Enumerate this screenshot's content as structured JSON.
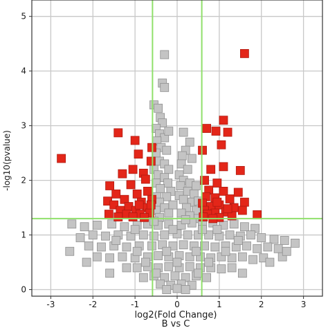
{
  "chart_data": {
    "type": "scatter",
    "title": "",
    "xlabel": "log2(Fold Change)",
    "xlabel_sub": "B vs C",
    "ylabel": "-log10(pvalue)",
    "xlim": [
      -3.45,
      3.45
    ],
    "ylim": [
      -0.12,
      5.3
    ],
    "xticks": [
      -3,
      -2,
      -1,
      0,
      1,
      2,
      3
    ],
    "yticks": [
      0,
      1,
      2,
      3,
      4,
      5
    ],
    "grid": true,
    "thresholds": {
      "x": [
        -0.585,
        0.585
      ],
      "y": 1.3
    },
    "colors": {
      "significant": "#e32619",
      "not_significant": "#c4c4c4",
      "marker_edge": "#8f8f8f",
      "threshold_line": "#8fe06a",
      "grid": "#c8c8c8",
      "frame": "#333333"
    },
    "series": [
      {
        "points": [
          [
            -2.75,
            2.4
          ],
          [
            -1.4,
            2.87
          ],
          [
            -1.0,
            2.73
          ],
          [
            -0.92,
            2.48
          ],
          [
            -0.6,
            2.6
          ],
          [
            -1.05,
            2.2
          ],
          [
            -0.62,
            2.35
          ],
          [
            -1.3,
            2.12
          ],
          [
            -0.8,
            2.13
          ],
          [
            -1.6,
            1.9
          ],
          [
            -1.1,
            1.92
          ],
          [
            -0.75,
            2.02
          ],
          [
            -1.45,
            1.75
          ],
          [
            -0.95,
            1.75
          ],
          [
            -0.7,
            1.8
          ],
          [
            -1.65,
            1.62
          ],
          [
            -1.25,
            1.65
          ],
          [
            -0.85,
            1.6
          ],
          [
            -0.6,
            1.65
          ],
          [
            -1.5,
            1.55
          ],
          [
            -1.15,
            1.52
          ],
          [
            -1.35,
            1.45
          ],
          [
            -0.98,
            1.45
          ],
          [
            -0.72,
            1.5
          ],
          [
            -1.62,
            1.38
          ],
          [
            -1.2,
            1.38
          ],
          [
            -0.88,
            1.38
          ],
          [
            -0.65,
            1.4
          ],
          [
            -1.05,
            1.33
          ],
          [
            -0.78,
            1.32
          ],
          [
            -1.4,
            1.33
          ],
          [
            -0.62,
            1.55
          ],
          [
            -0.9,
            1.55
          ],
          [
            1.6,
            4.32
          ],
          [
            1.1,
            3.1
          ],
          [
            0.7,
            2.95
          ],
          [
            0.92,
            2.9
          ],
          [
            1.2,
            2.88
          ],
          [
            1.05,
            2.65
          ],
          [
            0.6,
            2.55
          ],
          [
            1.1,
            2.25
          ],
          [
            1.5,
            2.18
          ],
          [
            0.8,
            2.2
          ],
          [
            0.65,
            2.0
          ],
          [
            0.95,
            1.95
          ],
          [
            0.75,
            1.82
          ],
          [
            1.1,
            1.8
          ],
          [
            1.45,
            1.78
          ],
          [
            0.68,
            1.7
          ],
          [
            0.9,
            1.68
          ],
          [
            1.25,
            1.66
          ],
          [
            1.6,
            1.6
          ],
          [
            0.6,
            1.58
          ],
          [
            1.0,
            1.55
          ],
          [
            0.8,
            1.52
          ],
          [
            1.35,
            1.5
          ],
          [
            0.65,
            1.45
          ],
          [
            1.15,
            1.42
          ],
          [
            1.55,
            1.45
          ],
          [
            0.9,
            1.4
          ],
          [
            0.72,
            1.38
          ],
          [
            1.3,
            1.35
          ],
          [
            1.0,
            1.32
          ],
          [
            1.9,
            1.37
          ],
          [
            0.62,
            1.33
          ],
          [
            0.85,
            1.3
          ],
          [
            1.2,
            1.48
          ],
          [
            0.95,
            1.6
          ]
        ]
      },
      {
        "points": [
          [
            -0.3,
            4.3
          ],
          [
            -0.35,
            3.78
          ],
          [
            -0.3,
            3.7
          ],
          [
            -0.55,
            3.38
          ],
          [
            -0.45,
            3.32
          ],
          [
            -0.4,
            3.15
          ],
          [
            -0.35,
            3.05
          ],
          [
            -0.5,
            2.95
          ],
          [
            -0.42,
            2.85
          ],
          [
            -0.3,
            2.78
          ],
          [
            -0.48,
            2.72
          ],
          [
            -0.2,
            2.9
          ],
          [
            -0.38,
            2.6
          ],
          [
            -0.5,
            2.5
          ],
          [
            -0.25,
            2.55
          ],
          [
            0.15,
            2.88
          ],
          [
            0.3,
            2.7
          ],
          [
            0.2,
            2.55
          ],
          [
            0.12,
            2.45
          ],
          [
            0.35,
            2.4
          ],
          [
            0.1,
            2.3
          ],
          [
            0.25,
            2.2
          ],
          [
            0.05,
            2.1
          ],
          [
            -0.42,
            2.35
          ],
          [
            -0.3,
            2.3
          ],
          [
            -0.55,
            2.2
          ],
          [
            -0.2,
            2.2
          ],
          [
            -0.45,
            2.1
          ],
          [
            -0.3,
            2.05
          ],
          [
            -0.5,
            1.95
          ],
          [
            -0.22,
            1.95
          ],
          [
            0.15,
            2.0
          ],
          [
            0.3,
            1.95
          ],
          [
            0.45,
            1.9
          ],
          [
            0.08,
            1.9
          ],
          [
            -0.4,
            1.85
          ],
          [
            -0.15,
            1.8
          ],
          [
            0.25,
            1.8
          ],
          [
            0.4,
            1.75
          ],
          [
            -0.48,
            1.7
          ],
          [
            -0.25,
            1.7
          ],
          [
            0.05,
            1.72
          ],
          [
            0.15,
            1.65
          ],
          [
            0.35,
            1.6
          ],
          [
            0.5,
            1.62
          ],
          [
            -0.42,
            1.6
          ],
          [
            -0.1,
            1.55
          ],
          [
            0.22,
            1.5
          ],
          [
            -0.3,
            1.5
          ],
          [
            0.45,
            1.45
          ],
          [
            -0.5,
            1.45
          ],
          [
            0.1,
            1.4
          ],
          [
            -0.2,
            1.4
          ],
          [
            0.3,
            1.35
          ],
          [
            -0.42,
            1.32
          ],
          [
            0.5,
            1.3
          ],
          [
            -2.5,
            1.2
          ],
          [
            -2.2,
            1.15
          ],
          [
            -1.9,
            1.18
          ],
          [
            -1.55,
            1.2
          ],
          [
            -1.25,
            1.15
          ],
          [
            -0.95,
            1.18
          ],
          [
            -0.7,
            1.2
          ],
          [
            -0.45,
            1.18
          ],
          [
            -0.2,
            1.2
          ],
          [
            0.1,
            1.18
          ],
          [
            0.35,
            1.22
          ],
          [
            0.6,
            1.2
          ],
          [
            0.85,
            1.22
          ],
          [
            1.1,
            1.18
          ],
          [
            1.35,
            1.2
          ],
          [
            1.6,
            1.15
          ],
          [
            1.85,
            1.12
          ],
          [
            -2.3,
            0.95
          ],
          [
            -2.0,
            1.0
          ],
          [
            -1.7,
            0.98
          ],
          [
            -1.4,
            1.0
          ],
          [
            -1.1,
            0.98
          ],
          [
            -0.8,
            1.0
          ],
          [
            -0.55,
            0.98
          ],
          [
            -0.3,
            1.0
          ],
          [
            0.0,
            1.02
          ],
          [
            0.25,
            1.0
          ],
          [
            0.5,
            1.0
          ],
          [
            0.75,
            1.0
          ],
          [
            1.0,
            0.98
          ],
          [
            1.25,
            1.0
          ],
          [
            1.5,
            0.98
          ],
          [
            1.75,
            1.0
          ],
          [
            2.0,
            0.95
          ],
          [
            2.3,
            0.92
          ],
          [
            2.55,
            0.9
          ],
          [
            2.8,
            0.85
          ],
          [
            -2.1,
            0.8
          ],
          [
            -1.8,
            0.78
          ],
          [
            -1.5,
            0.8
          ],
          [
            -1.2,
            0.78
          ],
          [
            -0.9,
            0.8
          ],
          [
            -0.6,
            0.8
          ],
          [
            -0.35,
            0.82
          ],
          [
            -0.1,
            0.8
          ],
          [
            0.15,
            0.82
          ],
          [
            0.4,
            0.8
          ],
          [
            0.65,
            0.8
          ],
          [
            0.9,
            0.78
          ],
          [
            1.15,
            0.8
          ],
          [
            1.4,
            0.78
          ],
          [
            1.65,
            0.8
          ],
          [
            1.9,
            0.75
          ],
          [
            2.15,
            0.78
          ],
          [
            2.4,
            0.75
          ],
          [
            -1.9,
            0.6
          ],
          [
            -1.6,
            0.58
          ],
          [
            -1.3,
            0.6
          ],
          [
            -1.0,
            0.58
          ],
          [
            -0.7,
            0.6
          ],
          [
            -0.45,
            0.62
          ],
          [
            -0.2,
            0.6
          ],
          [
            0.05,
            0.62
          ],
          [
            0.3,
            0.6
          ],
          [
            0.55,
            0.6
          ],
          [
            0.8,
            0.58
          ],
          [
            1.05,
            0.6
          ],
          [
            1.3,
            0.58
          ],
          [
            1.55,
            0.6
          ],
          [
            1.8,
            0.55
          ],
          [
            2.05,
            0.58
          ],
          [
            -1.2,
            0.4
          ],
          [
            -0.95,
            0.4
          ],
          [
            -0.7,
            0.42
          ],
          [
            -0.45,
            0.4
          ],
          [
            -0.2,
            0.42
          ],
          [
            0.05,
            0.4
          ],
          [
            0.3,
            0.42
          ],
          [
            0.55,
            0.4
          ],
          [
            0.8,
            0.4
          ],
          [
            1.05,
            0.38
          ],
          [
            1.3,
            0.4
          ],
          [
            -0.8,
            0.22
          ],
          [
            -0.55,
            0.25
          ],
          [
            -0.3,
            0.22
          ],
          [
            -0.05,
            0.25
          ],
          [
            0.2,
            0.22
          ],
          [
            0.45,
            0.25
          ],
          [
            0.7,
            0.22
          ],
          [
            -0.4,
            0.1
          ],
          [
            -0.15,
            0.08
          ],
          [
            0.1,
            0.1
          ],
          [
            0.35,
            0.08
          ],
          [
            0.0,
            0.02
          ],
          [
            -0.25,
            0.0
          ],
          [
            0.2,
            0.0
          ],
          [
            -1.6,
            0.3
          ],
          [
            1.55,
            0.3
          ],
          [
            -2.15,
            0.5
          ],
          [
            2.2,
            0.5
          ],
          [
            2.5,
            0.6
          ],
          [
            -2.55,
            0.7
          ],
          [
            2.6,
            0.7
          ],
          [
            -1.0,
            1.1
          ],
          [
            0.95,
            1.1
          ],
          [
            -0.55,
            1.25
          ],
          [
            0.6,
            1.1
          ],
          [
            -0.1,
            1.1
          ],
          [
            0.2,
            1.28
          ],
          [
            -0.25,
            0.7
          ],
          [
            0.45,
            0.7
          ],
          [
            -0.95,
            0.7
          ],
          [
            1.15,
            0.7
          ],
          [
            -1.45,
            0.9
          ],
          [
            1.45,
            0.9
          ],
          [
            -0.75,
            0.5
          ],
          [
            0.75,
            0.5
          ],
          [
            0.0,
            0.5
          ],
          [
            -0.5,
            0.3
          ],
          [
            0.5,
            0.3
          ]
        ]
      }
    ]
  }
}
